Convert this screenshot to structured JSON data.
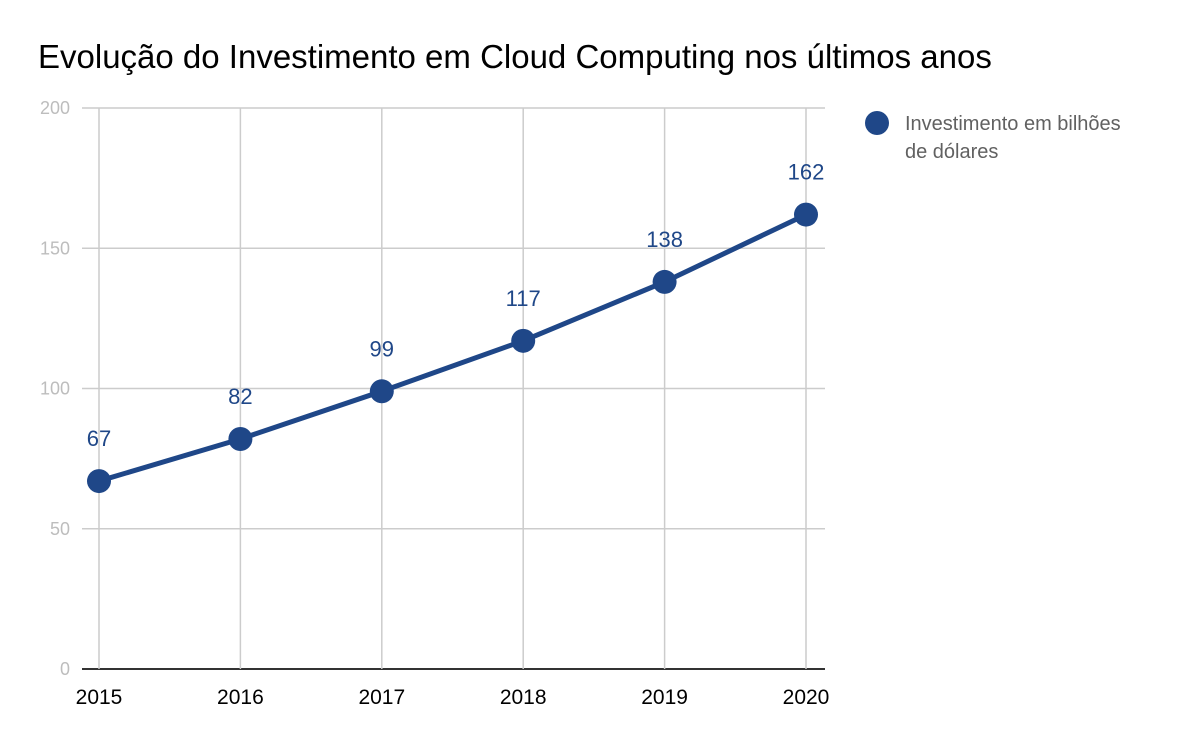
{
  "chart_data": {
    "type": "line",
    "title": "Evolução do Investimento em Cloud Computing nos últimos anos",
    "xlabel": "",
    "ylabel": "",
    "categories": [
      "2015",
      "2016",
      "2017",
      "2018",
      "2019",
      "2020"
    ],
    "series": [
      {
        "name": "Investimento em bilhões de dólares",
        "values": [
          67,
          82,
          99,
          117,
          138,
          162
        ]
      }
    ],
    "ylim": [
      0,
      200
    ],
    "yticks": [
      "0",
      "50",
      "100",
      "150",
      "200"
    ],
    "grid": true,
    "legend": {
      "position": "right",
      "lines": [
        "Investimento em bilhões",
        "de dólares"
      ]
    },
    "colors": {
      "series": "#1f4788",
      "grid": "#cccccc",
      "axis": "#333333"
    }
  }
}
